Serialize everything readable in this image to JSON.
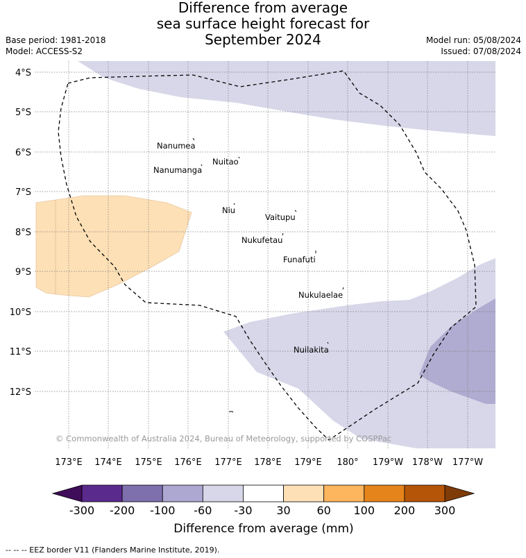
{
  "title": {
    "line1": "Difference from average",
    "line2": "sea surface height forecast for",
    "line3": "September 2024"
  },
  "meta": {
    "base_period": "Base period: 1981-2018",
    "model": "Model: ACCESS-S2",
    "model_run": "Model run: 05/08/2024",
    "issued": "Issued: 07/08/2024"
  },
  "map": {
    "lat_labels": [
      "4°S",
      "5°S",
      "6°S",
      "7°S",
      "8°S",
      "9°S",
      "10°S",
      "11°S",
      "12°S"
    ],
    "lon_labels": [
      "173°E",
      "174°E",
      "175°E",
      "176°E",
      "177°E",
      "178°E",
      "179°E",
      "180°",
      "179°W",
      "178°W",
      "177°W"
    ],
    "islands": [
      "Nanumea",
      "Nuitao",
      "Nanumanga",
      "Niu",
      "Vaitupu",
      "Nukufetau",
      "Funafuti",
      "Nukulaelae",
      "Nuilakita"
    ],
    "copyright": "© Commonwealth of Australia 2024, Bureau of Meteorology, supported by COSPPac"
  },
  "colorbar": {
    "ticks": [
      "-300",
      "-200",
      "-100",
      "-60",
      "-30",
      "30",
      "60",
      "100",
      "200",
      "300"
    ],
    "colors": [
      "#5a2a8c",
      "#7e6fad",
      "#ada8d2",
      "#d7d7e9",
      "#ffffff",
      "#fde0b6",
      "#fdb55e",
      "#e5841a",
      "#b45508"
    ],
    "under_color": "#3f0c5a",
    "over_color": "#7f3b08",
    "label": "Difference from average (mm)"
  },
  "footer": "--  --  -- EEZ border V11 (Flanders Marine Institute, 2019)."
}
